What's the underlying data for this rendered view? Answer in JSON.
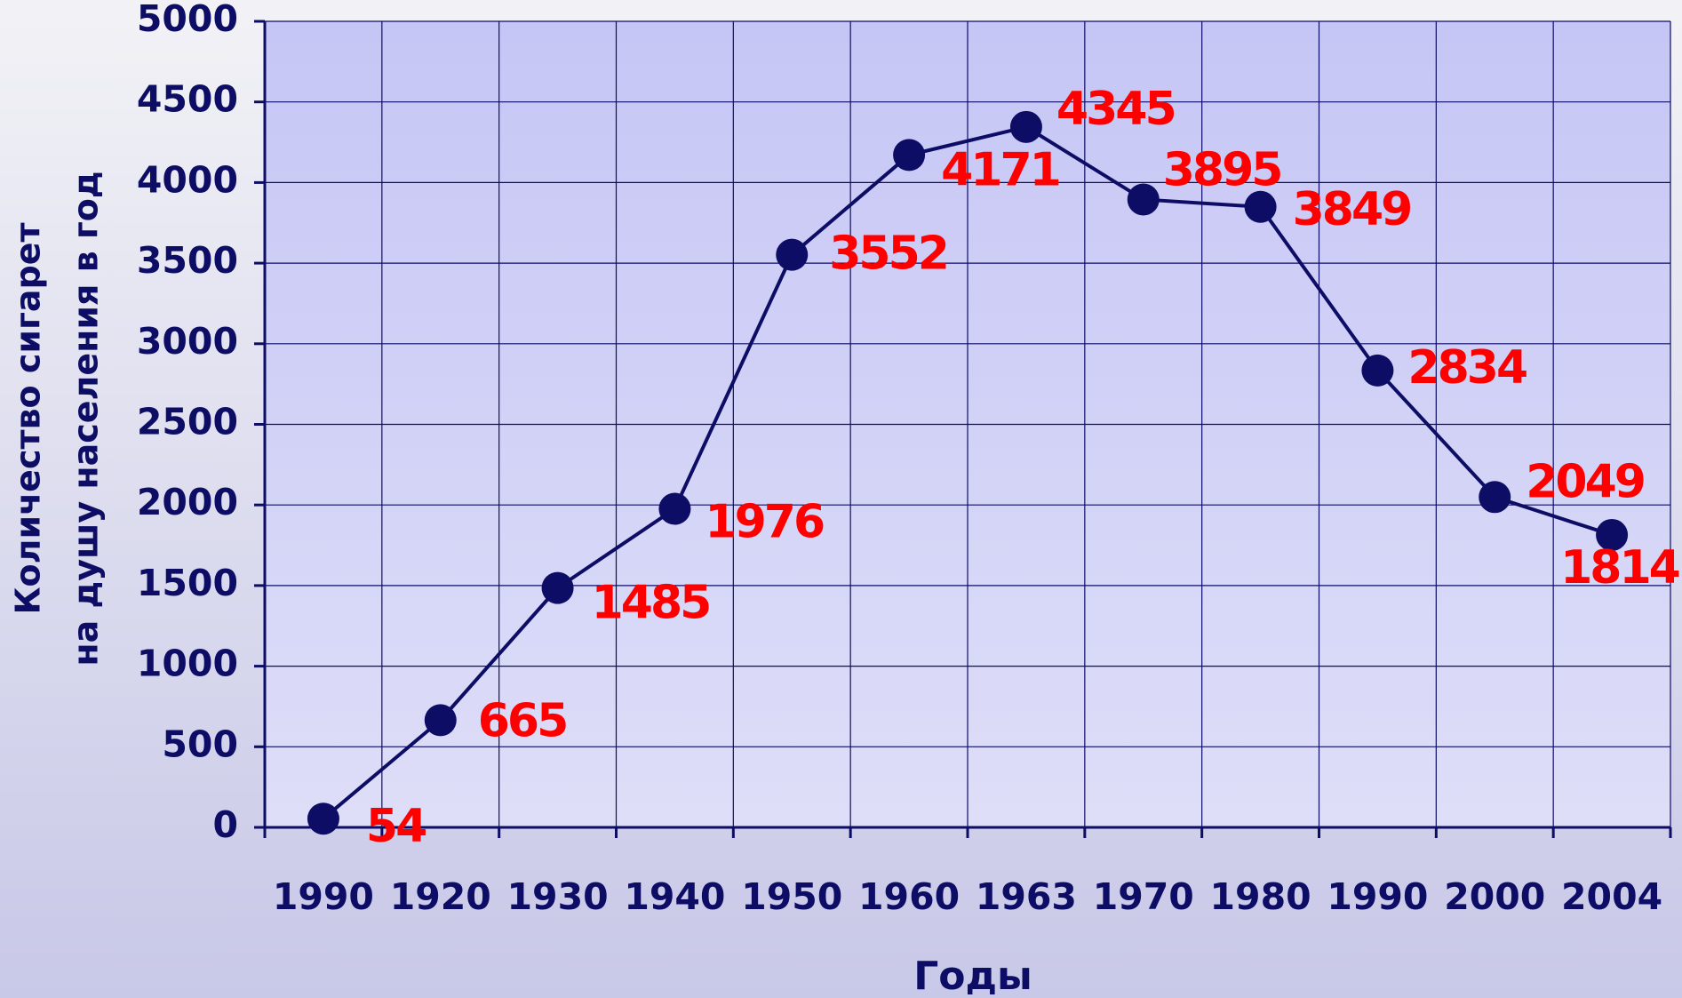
{
  "chart_data": {
    "type": "line",
    "xlabel": "Годы",
    "ylabel": [
      "Количество сигарет",
      "на душу населения в год"
    ],
    "categories": [
      "1990",
      "1920",
      "1930",
      "1940",
      "1950",
      "1960",
      "1963",
      "1970",
      "1980",
      "1990",
      "2000",
      "2004"
    ],
    "series": [
      {
        "name": "Количество сигарет",
        "color": "#0d0d66",
        "values": [
          54,
          665,
          1485,
          1976,
          3552,
          4171,
          4345,
          3895,
          3849,
          2834,
          2049,
          1814
        ]
      }
    ],
    "label_color": "#ff0000",
    "ylim": [
      0,
      5000
    ],
    "yticks": [
      0,
      500,
      1000,
      1500,
      2000,
      2500,
      3000,
      3500,
      4000,
      4500,
      5000
    ],
    "grid": true
  }
}
